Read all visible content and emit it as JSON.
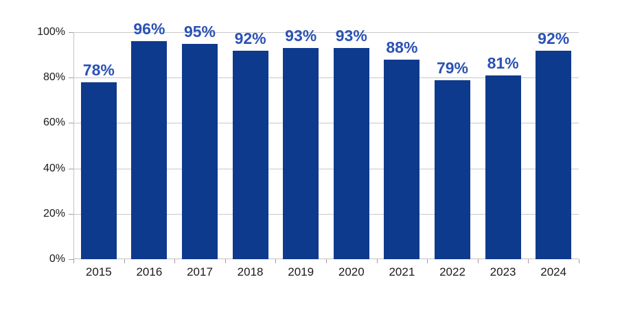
{
  "chart_data": {
    "type": "bar",
    "title": "",
    "xlabel": "",
    "ylabel": "",
    "categories": [
      "2015",
      "2016",
      "2017",
      "2018",
      "2019",
      "2020",
      "2021",
      "2022",
      "2023",
      "2024"
    ],
    "values": [
      78,
      96,
      95,
      92,
      93,
      93,
      88,
      79,
      81,
      92
    ],
    "value_labels": [
      "78%",
      "96%",
      "95%",
      "92%",
      "93%",
      "93%",
      "88%",
      "79%",
      "81%",
      "92%"
    ],
    "y_tick_values": [
      0,
      20,
      40,
      60,
      80,
      100
    ],
    "y_tick_labels": [
      "0%",
      "20%",
      "40%",
      "60%",
      "80%",
      "100%"
    ],
    "ylim": [
      0,
      100
    ],
    "grid": true,
    "legend": false,
    "colors": {
      "bar": "#0e3a8d",
      "value_label": "#2a52b5",
      "axis_text": "#1a1a1a",
      "gridline": "#c8c8c8",
      "axis_line": "#c2c2c2",
      "tick": "#9e9e9e",
      "background": "#ffffff"
    }
  }
}
